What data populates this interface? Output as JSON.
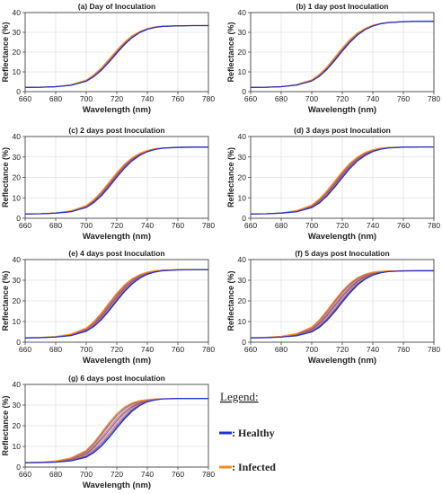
{
  "chart_data": [
    {
      "type": "line",
      "title": "(a) Day of Inoculation",
      "xlabel": "Wavelength (nm)",
      "ylabel": "Reflectance (%)",
      "xlim": [
        660,
        780
      ],
      "ylim": [
        0,
        40
      ],
      "xticks": [
        "660",
        "680",
        "700",
        "720",
        "740",
        "760",
        "780"
      ],
      "yticks": [
        "0",
        "10",
        "20",
        "30",
        "40"
      ],
      "grid": true,
      "series": [
        {
          "group": "healthy",
          "x": [
            660,
            670,
            680,
            690,
            700,
            705,
            710,
            715,
            720,
            725,
            730,
            735,
            740,
            745,
            750,
            760,
            770,
            780
          ],
          "values": [
            2.1,
            2.2,
            2.5,
            3.2,
            5.3,
            7.6,
            10.9,
            15.0,
            19.5,
            23.8,
            27.3,
            29.9,
            31.6,
            32.5,
            33.0,
            33.3,
            33.4,
            33.4
          ]
        },
        {
          "group": "infected",
          "x": [
            660,
            670,
            680,
            690,
            700,
            705,
            710,
            715,
            720,
            725,
            730,
            735,
            740,
            745,
            750,
            760,
            770,
            780
          ],
          "values": [
            2.1,
            2.2,
            2.5,
            3.4,
            5.8,
            8.5,
            12.1,
            16.4,
            20.9,
            25.0,
            28.2,
            30.4,
            31.9,
            32.7,
            33.1,
            33.3,
            33.4,
            33.4
          ]
        }
      ]
    },
    {
      "type": "line",
      "title": "(b) 1 day post Inoculation",
      "xlabel": "Wavelength (nm)",
      "ylabel": "Reflectance (%)",
      "xlim": [
        660,
        780
      ],
      "ylim": [
        0,
        40
      ],
      "xticks": [
        "660",
        "680",
        "700",
        "720",
        "740",
        "760",
        "780"
      ],
      "yticks": [
        "0",
        "10",
        "20",
        "30",
        "40"
      ],
      "grid": true,
      "series": [
        {
          "group": "healthy",
          "x": [
            660,
            670,
            680,
            690,
            700,
            705,
            710,
            715,
            720,
            725,
            730,
            735,
            740,
            745,
            750,
            760,
            770,
            780
          ],
          "values": [
            2.1,
            2.2,
            2.5,
            3.3,
            5.4,
            7.8,
            11.3,
            15.7,
            20.5,
            25.0,
            28.7,
            31.4,
            33.2,
            34.3,
            34.9,
            35.4,
            35.6,
            35.6
          ]
        },
        {
          "group": "infected",
          "x": [
            660,
            670,
            680,
            690,
            700,
            705,
            710,
            715,
            720,
            725,
            730,
            735,
            740,
            745,
            750,
            760,
            770,
            780
          ],
          "values": [
            2.1,
            2.2,
            2.5,
            3.5,
            5.9,
            8.7,
            12.5,
            17.2,
            22.0,
            26.3,
            29.7,
            32.0,
            33.6,
            34.5,
            35.0,
            35.4,
            35.6,
            35.6
          ]
        }
      ]
    },
    {
      "type": "line",
      "title": "(c) 2 days post Inoculation",
      "xlabel": "Wavelength (nm)",
      "ylabel": "Reflectance (%)",
      "xlim": [
        660,
        780
      ],
      "ylim": [
        0,
        40
      ],
      "xticks": [
        "660",
        "680",
        "700",
        "720",
        "740",
        "760",
        "780"
      ],
      "yticks": [
        "0",
        "10",
        "20",
        "30",
        "40"
      ],
      "grid": true,
      "series": [
        {
          "group": "healthy",
          "x": [
            660,
            670,
            680,
            690,
            700,
            705,
            710,
            715,
            720,
            725,
            730,
            735,
            740,
            745,
            750,
            760,
            770,
            780
          ],
          "values": [
            2.1,
            2.2,
            2.5,
            3.2,
            5.3,
            7.7,
            11.1,
            15.4,
            20.1,
            24.5,
            28.1,
            30.8,
            32.6,
            33.7,
            34.3,
            34.7,
            34.8,
            34.8
          ]
        },
        {
          "group": "infected",
          "x": [
            660,
            670,
            680,
            690,
            700,
            705,
            710,
            715,
            720,
            725,
            730,
            735,
            740,
            745,
            750,
            760,
            770,
            780
          ],
          "values": [
            2.1,
            2.2,
            2.6,
            3.6,
            6.2,
            9.1,
            13.0,
            17.6,
            22.3,
            26.4,
            29.6,
            31.8,
            33.2,
            34.0,
            34.4,
            34.7,
            34.8,
            34.8
          ]
        }
      ]
    },
    {
      "type": "line",
      "title": "(d) 3 days post Inoculation",
      "xlabel": "Wavelength (nm)",
      "ylabel": "Reflectance (%)",
      "xlim": [
        660,
        780
      ],
      "ylim": [
        0,
        40
      ],
      "xticks": [
        "660",
        "680",
        "700",
        "720",
        "740",
        "760",
        "780"
      ],
      "yticks": [
        "0",
        "10",
        "20",
        "30",
        "40"
      ],
      "grid": true,
      "series": [
        {
          "group": "healthy",
          "x": [
            660,
            670,
            680,
            690,
            700,
            705,
            710,
            715,
            720,
            725,
            730,
            735,
            740,
            745,
            750,
            760,
            770,
            780
          ],
          "values": [
            2.1,
            2.2,
            2.5,
            3.2,
            5.2,
            7.5,
            10.9,
            15.2,
            19.9,
            24.4,
            28.1,
            30.8,
            32.7,
            33.8,
            34.4,
            34.8,
            34.9,
            34.9
          ]
        },
        {
          "group": "infected",
          "x": [
            660,
            670,
            680,
            690,
            700,
            705,
            710,
            715,
            720,
            725,
            730,
            735,
            740,
            745,
            750,
            760,
            770,
            780
          ],
          "values": [
            2.1,
            2.2,
            2.6,
            3.7,
            6.4,
            9.4,
            13.4,
            18.1,
            22.8,
            26.9,
            30.0,
            32.2,
            33.5,
            34.3,
            34.6,
            34.8,
            34.9,
            34.9
          ]
        }
      ]
    },
    {
      "type": "line",
      "title": "(e) 4 days post Inoculation",
      "xlabel": "Wavelength (nm)",
      "ylabel": "Reflectance (%)",
      "xlim": [
        660,
        780
      ],
      "ylim": [
        0,
        40
      ],
      "xticks": [
        "660",
        "680",
        "700",
        "720",
        "740",
        "760",
        "780"
      ],
      "yticks": [
        "0",
        "10",
        "20",
        "30",
        "40"
      ],
      "grid": true,
      "series": [
        {
          "group": "healthy",
          "x": [
            660,
            670,
            680,
            690,
            700,
            705,
            710,
            715,
            720,
            725,
            730,
            735,
            740,
            745,
            750,
            760,
            770,
            780
          ],
          "values": [
            2.1,
            2.2,
            2.5,
            3.2,
            5.3,
            7.6,
            11.0,
            15.3,
            20.0,
            24.5,
            28.2,
            31.0,
            32.9,
            34.0,
            34.6,
            35.0,
            35.1,
            35.1
          ]
        },
        {
          "group": "infected",
          "x": [
            660,
            670,
            680,
            690,
            700,
            705,
            710,
            715,
            720,
            725,
            730,
            735,
            740,
            745,
            750,
            760,
            770,
            780
          ],
          "values": [
            2.1,
            2.3,
            2.7,
            3.9,
            6.8,
            10.0,
            14.2,
            19.0,
            23.7,
            27.7,
            30.7,
            32.7,
            33.9,
            34.6,
            34.9,
            35.1,
            35.1,
            35.1
          ]
        }
      ]
    },
    {
      "type": "line",
      "title": "(f) 5 days post Inoculation",
      "xlabel": "Wavelength (nm)",
      "ylabel": "Reflectance (%)",
      "xlim": [
        660,
        780
      ],
      "ylim": [
        0,
        40
      ],
      "xticks": [
        "660",
        "680",
        "700",
        "720",
        "740",
        "760",
        "780"
      ],
      "yticks": [
        "0",
        "10",
        "20",
        "30",
        "40"
      ],
      "grid": true,
      "series": [
        {
          "group": "healthy",
          "x": [
            660,
            670,
            680,
            690,
            700,
            705,
            710,
            715,
            720,
            725,
            730,
            735,
            740,
            745,
            750,
            760,
            770,
            780
          ],
          "values": [
            2.1,
            2.2,
            2.5,
            3.1,
            5.0,
            7.2,
            10.5,
            14.7,
            19.4,
            23.9,
            27.7,
            30.6,
            32.5,
            33.6,
            34.2,
            34.5,
            34.6,
            34.6
          ]
        },
        {
          "group": "infected",
          "x": [
            660,
            670,
            680,
            690,
            700,
            705,
            710,
            715,
            720,
            725,
            730,
            735,
            740,
            745,
            750,
            760,
            770,
            780
          ],
          "values": [
            2.1,
            2.3,
            2.8,
            4.1,
            7.3,
            10.8,
            15.3,
            20.2,
            24.8,
            28.5,
            31.2,
            32.9,
            33.9,
            34.3,
            34.5,
            34.6,
            34.6,
            34.6
          ]
        }
      ]
    },
    {
      "type": "line",
      "title": "(g) 6 days post Inoculation",
      "xlabel": "Wavelength (nm)",
      "ylabel": "Reflectance (%)",
      "xlim": [
        660,
        780
      ],
      "ylim": [
        0,
        40
      ],
      "xticks": [
        "660",
        "680",
        "700",
        "720",
        "740",
        "760",
        "780"
      ],
      "yticks": [
        "0",
        "10",
        "20",
        "30",
        "40"
      ],
      "grid": true,
      "series": [
        {
          "group": "healthy",
          "x": [
            660,
            670,
            680,
            690,
            700,
            705,
            710,
            715,
            720,
            725,
            730,
            735,
            740,
            745,
            750,
            760,
            770,
            780
          ],
          "values": [
            2.1,
            2.2,
            2.4,
            3.0,
            4.8,
            7.0,
            10.2,
            14.3,
            18.9,
            23.3,
            27.0,
            29.8,
            31.6,
            32.5,
            33.0,
            33.2,
            33.2,
            33.2
          ]
        },
        {
          "group": "infected",
          "x": [
            660,
            670,
            680,
            690,
            700,
            705,
            710,
            715,
            720,
            725,
            730,
            735,
            740,
            745,
            750,
            760,
            770,
            780
          ],
          "values": [
            2.1,
            2.3,
            2.9,
            4.4,
            8.0,
            11.8,
            16.6,
            21.5,
            25.8,
            29.0,
            31.0,
            32.1,
            32.6,
            32.9,
            33.0,
            33.1,
            33.1,
            33.1
          ]
        }
      ]
    }
  ],
  "legend": {
    "title": "Legend:",
    "items": [
      {
        "label": ": Healthy",
        "color": "#1f33c9"
      },
      {
        "label": ": Infected",
        "color": "#ff8a1e"
      }
    ]
  },
  "colors": {
    "healthy": "#1f33c9",
    "infected": "#ff8a1e",
    "mixed": "#b04a7a"
  }
}
